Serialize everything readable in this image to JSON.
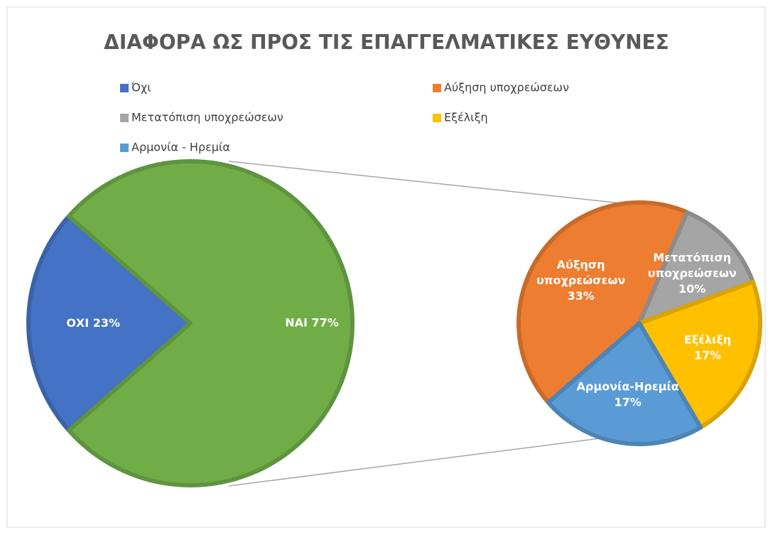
{
  "chart_data": {
    "type": "pie-of-pie",
    "title": "ΔΙΑΦΟΡΑ ΩΣ ΠΡΟΣ ΤΙΣ ΕΠΑΓΓΕΛΜΑΤΙΚΕΣ ΕΥΘΥΝΕΣ",
    "categories": [
      "Όχι",
      "Αύξηση υποχρεώσεων",
      "Μετατόπιση υποχρεώσεων",
      "Εξέλιξη",
      "Αρμονία - Ηρεμία"
    ],
    "colors": [
      "#4472c4",
      "#ed7d31",
      "#a5a5a5",
      "#ffc000",
      "#5b9bd5"
    ],
    "values": [
      23,
      33,
      10,
      17,
      17
    ],
    "value_labels": [
      [
        "ΟΧΙ 23%"
      ],
      [
        "Αύξηση",
        "υποχρεώσεων",
        "33%"
      ],
      [
        "Μετατόπιση",
        "υποχρεώσεων",
        "10%"
      ],
      [
        "Εξέλιξη",
        "17%"
      ],
      [
        "Αρμονία-Ηρεμία",
        "17%"
      ]
    ],
    "other": {
      "value": 77,
      "value_label": "ΝΑΙ 77%",
      "color": "#70ad47"
    },
    "legend": "top"
  }
}
